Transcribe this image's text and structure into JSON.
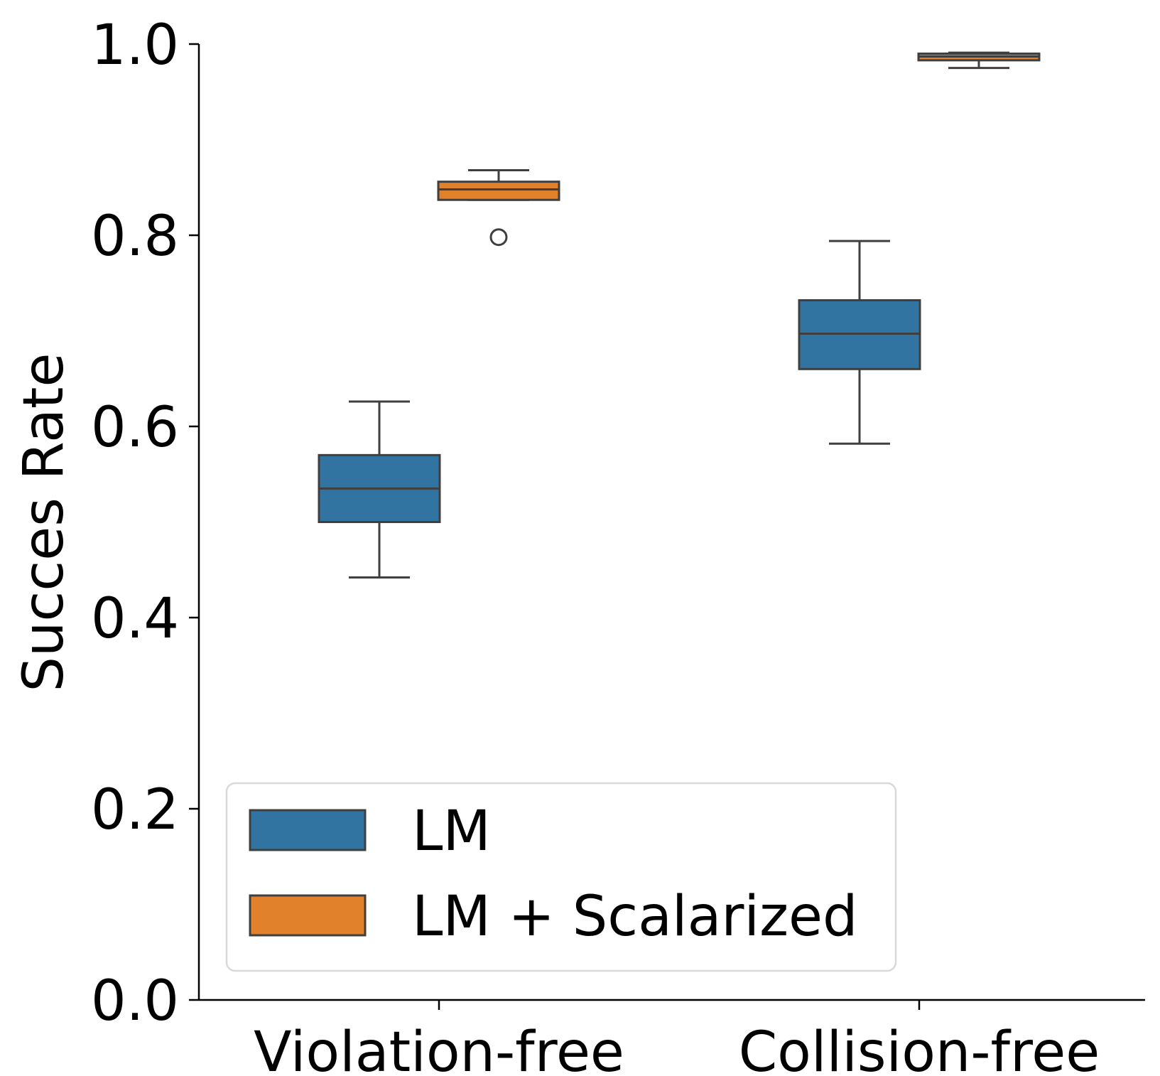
{
  "chart_data": {
    "type": "box",
    "categories": [
      "Violation-free",
      "Collision-free"
    ],
    "ylabel": "Succes Rate",
    "xlabel": "",
    "ylim": [
      0.0,
      1.0
    ],
    "yticks": [
      "0.0",
      "0.2",
      "0.4",
      "0.6",
      "0.8",
      "1.0"
    ],
    "grid": false,
    "legend_position": "lower-left",
    "series": [
      {
        "name": "LM",
        "color": "#3274a1",
        "boxes": [
          {
            "category": "Violation-free",
            "whisker_low": 0.442,
            "q1": 0.5,
            "median": 0.535,
            "q3": 0.57,
            "whisker_high": 0.626,
            "outliers": []
          },
          {
            "category": "Collision-free",
            "whisker_low": 0.582,
            "q1": 0.66,
            "median": 0.697,
            "q3": 0.732,
            "whisker_high": 0.794,
            "outliers": []
          }
        ]
      },
      {
        "name": "LM + Scalarized",
        "color": "#e1812c",
        "boxes": [
          {
            "category": "Violation-free",
            "whisker_low": 0.837,
            "q1": 0.837,
            "median": 0.848,
            "q3": 0.856,
            "whisker_high": 0.868,
            "outliers": [
              0.798
            ]
          },
          {
            "category": "Collision-free",
            "whisker_low": 0.975,
            "q1": 0.983,
            "median": 0.987,
            "q3": 0.99,
            "whisker_high": 0.991,
            "outliers": []
          }
        ]
      }
    ]
  }
}
